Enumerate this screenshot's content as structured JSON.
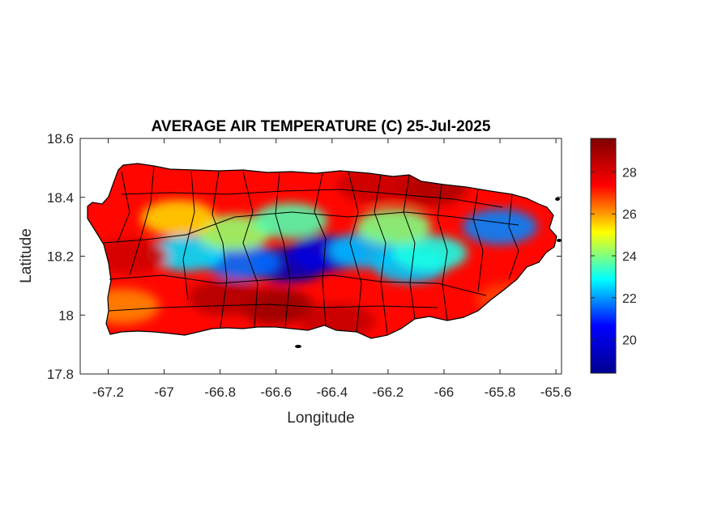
{
  "chart_data": {
    "type": "heatmap",
    "title": "AVERAGE AIR TEMPERATURE (C) 25-Jul-2025",
    "xlabel": "Longitude",
    "ylabel": "Latitude",
    "xlim": [
      -67.3,
      -65.58
    ],
    "ylim": [
      17.8,
      18.6
    ],
    "x_ticks": [
      -67.2,
      -67,
      -66.8,
      -66.6,
      -66.4,
      -66.2,
      -66,
      -65.8,
      -65.6
    ],
    "x_tick_labels": [
      "-67.2",
      "-67",
      "-66.8",
      "-66.6",
      "-66.4",
      "-66.2",
      "-66",
      "-65.8",
      "-65.6"
    ],
    "y_ticks": [
      17.8,
      18,
      18.2,
      18.4,
      18.6
    ],
    "y_tick_labels": [
      "17.8",
      "18",
      "18.2",
      "18.4",
      "18.6"
    ],
    "grid": false,
    "colormap": "jet",
    "colorbar": {
      "range": [
        18.4,
        29.6
      ],
      "ticks": [
        20,
        22,
        24,
        26,
        28
      ],
      "tick_labels": [
        "20",
        "22",
        "24",
        "26",
        "28"
      ],
      "colors": [
        "#00008f",
        "#0000ff",
        "#00ffff",
        "#ffff00",
        "#ff0000",
        "#800000"
      ]
    },
    "temperature_field": {
      "background_c": 27.3,
      "features": [
        {
          "lon": -66.55,
          "lat": 18.17,
          "c": 19.2
        },
        {
          "lon": -66.42,
          "lat": 18.21,
          "c": 20.0
        },
        {
          "lon": -66.72,
          "lat": 18.18,
          "c": 21.6
        },
        {
          "lon": -66.92,
          "lat": 18.21,
          "c": 22.6
        },
        {
          "lon": -66.28,
          "lat": 18.22,
          "c": 22.3
        },
        {
          "lon": -66.12,
          "lat": 18.17,
          "c": 22.4
        },
        {
          "lon": -66.05,
          "lat": 18.21,
          "c": 23.1
        },
        {
          "lon": -65.8,
          "lat": 18.3,
          "c": 21.8
        },
        {
          "lon": -66.75,
          "lat": 18.28,
          "c": 24.2
        },
        {
          "lon": -66.55,
          "lat": 18.32,
          "c": 23.6
        },
        {
          "lon": -66.18,
          "lat": 18.3,
          "c": 24.0
        },
        {
          "lon": -66.95,
          "lat": 18.33,
          "c": 25.5
        },
        {
          "lon": -66.6,
          "lat": 18.03,
          "c": 29.2
        },
        {
          "lon": -66.78,
          "lat": 18.06,
          "c": 28.7
        },
        {
          "lon": -66.38,
          "lat": 17.98,
          "c": 28.4
        },
        {
          "lon": -66.05,
          "lat": 18.43,
          "c": 28.8
        },
        {
          "lon": -66.25,
          "lat": 18.44,
          "c": 28.3
        },
        {
          "lon": -67.12,
          "lat": 18.2,
          "c": 28.2
        },
        {
          "lon": -67.15,
          "lat": 18.03,
          "c": 26.2
        },
        {
          "lon": -65.75,
          "lat": 18.05,
          "c": 26.8
        }
      ]
    }
  }
}
